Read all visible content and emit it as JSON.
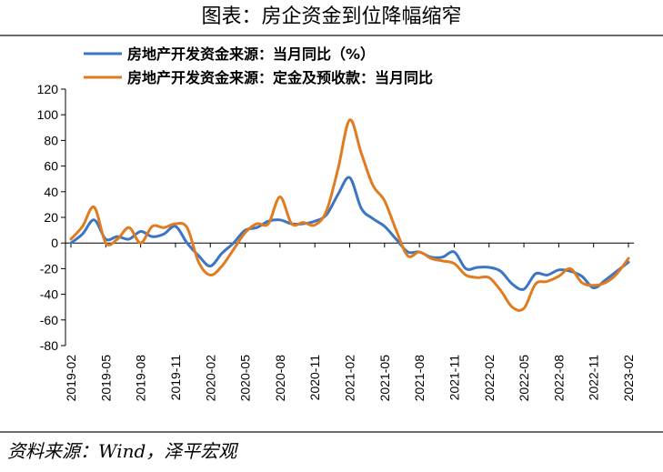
{
  "title": "图表：房企资金到位降幅缩窄",
  "source": "资料来源：Wind，泽平宏观",
  "chart_data": {
    "type": "line",
    "title": "图表：房企资金到位降幅缩窄",
    "xlabel": "",
    "ylabel": "",
    "ylim": [
      -80,
      120
    ],
    "yticks": [
      120,
      100,
      80,
      60,
      40,
      20,
      0,
      -20,
      -40,
      -60,
      -80
    ],
    "grid": false,
    "legend_position": "top-left",
    "x": [
      "2019-02",
      "2019-03",
      "2019-04",
      "2019-05",
      "2019-06",
      "2019-07",
      "2019-08",
      "2019-09",
      "2019-10",
      "2019-11",
      "2019-12",
      "2020-01",
      "2020-02",
      "2020-03",
      "2020-04",
      "2020-05",
      "2020-06",
      "2020-07",
      "2020-08",
      "2020-09",
      "2020-10",
      "2020-11",
      "2020-12",
      "2021-01",
      "2021-02",
      "2021-03",
      "2021-04",
      "2021-05",
      "2021-06",
      "2021-07",
      "2021-08",
      "2021-09",
      "2021-10",
      "2021-11",
      "2021-12",
      "2022-01",
      "2022-02",
      "2022-03",
      "2022-04",
      "2022-05",
      "2022-06",
      "2022-07",
      "2022-08",
      "2022-09",
      "2022-10",
      "2022-11",
      "2022-12",
      "2023-01",
      "2023-02"
    ],
    "xtick_labels": [
      "2019-02",
      "2019-05",
      "2019-08",
      "2019-11",
      "2020-02",
      "2020-05",
      "2020-08",
      "2020-11",
      "2021-02",
      "2021-05",
      "2021-08",
      "2021-11",
      "2022-02",
      "2022-05",
      "2022-08",
      "2022-11",
      "2023-02"
    ],
    "series": [
      {
        "name": "房地产开发资金来源：当月同比（%）",
        "color": "#3b75c4",
        "values": [
          0,
          7,
          18,
          3,
          5,
          3,
          9,
          5,
          7,
          13,
          0,
          -10,
          -18,
          -8,
          0,
          10,
          12,
          17,
          18,
          15,
          15,
          17,
          22,
          38,
          51,
          27,
          19,
          13,
          3,
          -7,
          -7,
          -11,
          -11,
          -7,
          -20,
          -19,
          -19,
          -22,
          -32,
          -36,
          -24,
          -25,
          -21,
          -22,
          -26,
          -35,
          -29,
          -22,
          -15
        ]
      },
      {
        "name": "房地产开发资金来源：定金及预收款：当月同比",
        "color": "#e07b1f",
        "values": [
          3,
          13,
          28,
          0,
          3,
          12,
          0,
          13,
          12,
          15,
          12,
          -15,
          -25,
          -18,
          -5,
          8,
          15,
          15,
          36,
          15,
          16,
          14,
          25,
          58,
          96,
          70,
          45,
          33,
          10,
          -10,
          -7,
          -12,
          -14,
          -16,
          -25,
          -27,
          -27,
          -37,
          -50,
          -51,
          -32,
          -30,
          -26,
          -20,
          -31,
          -33,
          -31,
          -24,
          -12
        ]
      }
    ]
  }
}
